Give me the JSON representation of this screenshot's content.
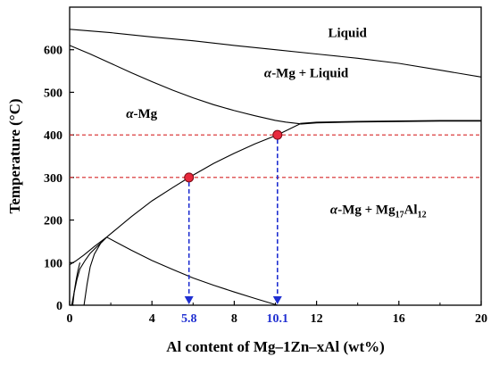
{
  "chart_data": {
    "type": "line",
    "xlabel": "Al content of Mg–1Zn–xAl (wt%)",
    "ylabel": "Temperature (°C)",
    "xlim": [
      0,
      20
    ],
    "ylim": [
      0,
      700
    ],
    "x_ticks": [
      0,
      4,
      8,
      12,
      16,
      20
    ],
    "y_ticks": [
      0,
      100,
      200,
      300,
      400,
      500,
      600
    ],
    "grid": false,
    "line_color": "#000000",
    "reference_color": "#d62728",
    "highlight_color": "#1f2fd1",
    "marker_color": "#e8283c",
    "regions": [
      {
        "name": "liquid",
        "label": "Liquid",
        "x": 13.5,
        "y": 630
      },
      {
        "name": "alpha-liquid",
        "label": "α-Mg + Liquid",
        "x": 11.5,
        "y": 535
      },
      {
        "name": "alpha-mg",
        "label": "α-Mg",
        "x": 3.5,
        "y": 440
      },
      {
        "name": "alpha-mg17al12",
        "label": "α-Mg + Mg₁₇Al₁₂",
        "x": 15.0,
        "y": 215
      }
    ],
    "series": [
      {
        "id": "liquidus",
        "x": [
          0.0,
          2,
          4,
          6,
          8,
          10,
          12,
          14,
          16,
          18,
          20
        ],
        "y": [
          648,
          640,
          630,
          621,
          610,
          600,
          590,
          580,
          568,
          552,
          536
        ]
      },
      {
        "id": "solidus",
        "x": [
          0.0,
          1,
          2,
          3,
          4,
          5,
          6,
          7,
          8,
          9,
          10,
          10.5,
          11.2
        ],
        "y": [
          610,
          590,
          568,
          546,
          525,
          505,
          487,
          471,
          457,
          445,
          434,
          430,
          426
        ]
      },
      {
        "id": "eutectic",
        "x": [
          11.2,
          12,
          14,
          16,
          18,
          20
        ],
        "y": [
          426,
          429,
          431,
          432,
          433,
          433
        ]
      },
      {
        "id": "solvus",
        "x": [
          1.8,
          3,
          4,
          5,
          5.8,
          7,
          8,
          9,
          10.1,
          11.2
        ],
        "y": [
          160,
          208,
          245,
          276,
          300,
          333,
          357,
          379,
          400,
          426
        ]
      },
      {
        "id": "low-boundary",
        "x": [
          0.0,
          0.3,
          0.7,
          1.2,
          1.8
        ],
        "y": [
          95,
          104,
          118,
          138,
          160
        ]
      },
      {
        "id": "branch-a",
        "x": [
          0.15,
          0.22,
          0.35,
          0.5,
          0.75,
          1.0,
          1.4,
          1.8
        ],
        "y": [
          0,
          30,
          60,
          85,
          105,
          122,
          141,
          160
        ]
      },
      {
        "id": "branch-b",
        "x": [
          0.1,
          0.2,
          0.3,
          0.4,
          0.5
        ],
        "y": [
          0,
          25,
          55,
          80,
          100
        ]
      },
      {
        "id": "branch-c",
        "x": [
          0.7,
          0.85,
          1.0,
          1.2,
          1.5,
          1.8
        ],
        "y": [
          0,
          50,
          90,
          120,
          145,
          160
        ]
      },
      {
        "id": "tail",
        "x": [
          1.8,
          3,
          4,
          5,
          6,
          7,
          8,
          9,
          10.1
        ],
        "y": [
          160,
          129,
          105,
          84,
          64,
          47,
          31,
          16,
          0
        ]
      },
      {
        "id": "y-axis-segment",
        "x": [
          0.0,
          0.0
        ],
        "y": [
          0,
          95
        ]
      }
    ],
    "reference_lines": [
      {
        "y": 400,
        "label": "400 °C"
      },
      {
        "y": 300,
        "label": "300 °C"
      }
    ],
    "markers": [
      {
        "x": 5.8,
        "y": 300
      },
      {
        "x": 10.1,
        "y": 400
      }
    ],
    "highlights": [
      {
        "x": 5.8,
        "label": "5.8"
      },
      {
        "x": 10.1,
        "label": "10.1"
      }
    ]
  }
}
